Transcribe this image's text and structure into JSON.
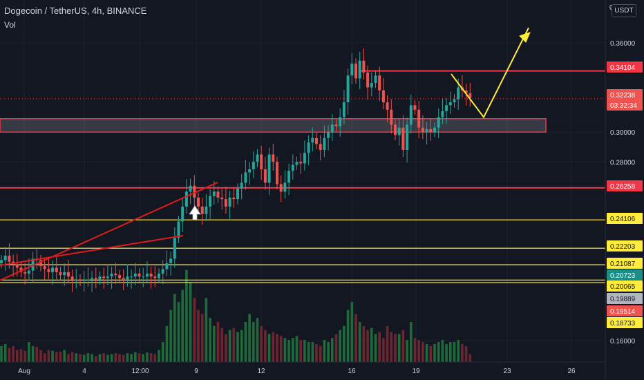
{
  "header": {
    "title": "Dogecoin / TetherUS, 4h, BINANCE",
    "vol_label": "Vol",
    "currency": "USDT",
    "top_tick": "0"
  },
  "colors": {
    "background": "#131722",
    "grid": "#1e222d",
    "up": "#26a69a",
    "down": "#ef5350",
    "vol_up": "#1f6a3b",
    "vol_down": "#6e2530",
    "resistance": "#f23645",
    "support": "#ffeb3b",
    "trendline": "#e01b1b",
    "projection": "#ffeb3b"
  },
  "chart_data": {
    "type": "candlestick",
    "title": "Dogecoin / TetherUS, 4h, BINANCE",
    "ylim": [
      0.152,
      0.4
    ],
    "y_ticks": [
      0.16,
      0.28,
      0.3,
      0.36
    ],
    "x_ticks": [
      "Aug",
      "4",
      "12:00",
      "9",
      "12",
      "16",
      "19",
      "23",
      "26"
    ],
    "grid": true,
    "candles_close": [
      0.214,
      0.217,
      0.213,
      0.211,
      0.209,
      0.206,
      0.205,
      0.207,
      0.215,
      0.214,
      0.21,
      0.208,
      0.206,
      0.209,
      0.206,
      0.204,
      0.206,
      0.203,
      0.201,
      0.201,
      0.2,
      0.201,
      0.201,
      0.202,
      0.201,
      0.203,
      0.202,
      0.203,
      0.205,
      0.204,
      0.202,
      0.201,
      0.203,
      0.203,
      0.205,
      0.203,
      0.203,
      0.205,
      0.203,
      0.202,
      0.205,
      0.208,
      0.212,
      0.215,
      0.229,
      0.24,
      0.25,
      0.26,
      0.264,
      0.256,
      0.25,
      0.245,
      0.25,
      0.257,
      0.26,
      0.256,
      0.255,
      0.25,
      0.256,
      0.255,
      0.262,
      0.266,
      0.273,
      0.275,
      0.28,
      0.285,
      0.275,
      0.266,
      0.285,
      0.28,
      0.265,
      0.26,
      0.266,
      0.274,
      0.278,
      0.28,
      0.279,
      0.286,
      0.293,
      0.296,
      0.292,
      0.288,
      0.296,
      0.3,
      0.305,
      0.304,
      0.31,
      0.32,
      0.338,
      0.346,
      0.336,
      0.348,
      0.34,
      0.33,
      0.333,
      0.338,
      0.328,
      0.32,
      0.315,
      0.305,
      0.298,
      0.303,
      0.288,
      0.305,
      0.318,
      0.315,
      0.303,
      0.3,
      0.302,
      0.3,
      0.303,
      0.31,
      0.314,
      0.318,
      0.32,
      0.322,
      0.33,
      0.328,
      0.326,
      0.323
    ],
    "volume": [
      0.4,
      0.45,
      0.35,
      0.4,
      0.3,
      0.32,
      0.28,
      0.5,
      0.4,
      0.38,
      0.3,
      0.22,
      0.3,
      0.28,
      0.25,
      0.26,
      0.3,
      0.2,
      0.25,
      0.22,
      0.2,
      0.18,
      0.22,
      0.2,
      0.15,
      0.2,
      0.22,
      0.18,
      0.2,
      0.22,
      0.2,
      0.18,
      0.22,
      0.2,
      0.25,
      0.22,
      0.2,
      0.24,
      0.22,
      0.2,
      0.3,
      0.5,
      0.9,
      1.3,
      1.7,
      1.5,
      1.8,
      2.3,
      2.0,
      1.6,
      1.3,
      1.2,
      1.6,
      1.1,
      0.9,
      1.0,
      0.85,
      0.7,
      0.8,
      0.85,
      0.75,
      0.8,
      1.0,
      1.2,
      1.0,
      1.1,
      0.9,
      0.8,
      0.7,
      0.75,
      0.7,
      0.65,
      0.6,
      0.55,
      0.6,
      0.65,
      0.55,
      0.55,
      0.5,
      0.5,
      0.45,
      0.4,
      0.55,
      0.5,
      0.6,
      0.7,
      0.8,
      0.9,
      1.3,
      1.5,
      1.2,
      1.0,
      0.9,
      0.8,
      0.85,
      0.7,
      0.75,
      0.6,
      0.9,
      0.75,
      0.7,
      0.7,
      0.8,
      0.55,
      1.0,
      0.6,
      0.55,
      0.5,
      0.45,
      0.4,
      0.45,
      0.5,
      0.55,
      0.45,
      0.5,
      0.5,
      0.55,
      0.45,
      0.4,
      0.2
    ],
    "resistance_levels": [
      0.34104,
      0.26258
    ],
    "resistance_zone": [
      0.3,
      0.309
    ],
    "support_levels": [
      0.24106,
      0.22203,
      0.21087,
      0.20065,
      0.19889
    ],
    "price_labels": [
      {
        "text": "0.34104",
        "kind": "resistance",
        "value": 0.34104
      },
      {
        "text": "0.32238",
        "kind": "current",
        "value": 0.32238
      },
      {
        "text": "03:32:34",
        "kind": "countdown",
        "value": 0.3168
      },
      {
        "text": "0.26258",
        "kind": "resistance",
        "value": 0.26258
      },
      {
        "text": "0.24106",
        "kind": "support",
        "value": 0.24106
      },
      {
        "text": "0.22203",
        "kind": "support",
        "value": 0.22203
      },
      {
        "text": "0.21087",
        "kind": "support",
        "value": 0.21087
      },
      {
        "text": "0.20723",
        "kind": "teal",
        "value": 0.20723
      },
      {
        "text": "0.20065",
        "kind": "support",
        "value": 0.20065
      },
      {
        "text": "0.19889",
        "kind": "grey",
        "value": 0.19889
      },
      {
        "text": "0.19514",
        "kind": "red",
        "value": 0.19514
      },
      {
        "text": "0.18733",
        "kind": "support",
        "value": 0.18733
      }
    ],
    "projection_path": [
      [
        0.336,
        0
      ],
      [
        0.313,
        1
      ],
      [
        0.37,
        2
      ]
    ]
  }
}
